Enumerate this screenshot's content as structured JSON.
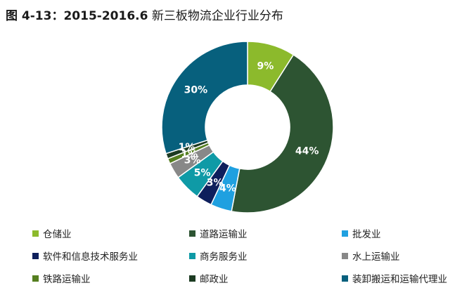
{
  "title": {
    "prefix": "图 4-13：2015-2016.6",
    "suffix": " 新三板物流企业行业分布"
  },
  "chart_data": {
    "type": "pie",
    "variant": "donut",
    "title": "图 4-13：2015-2016.6 新三板物流企业行业分布",
    "legend_position": "bottom",
    "slices": [
      {
        "label": "仓储业",
        "value": 9,
        "text": "9%",
        "color": "#8cba2c"
      },
      {
        "label": "道路运输业",
        "value": 44,
        "text": "44%",
        "color": "#2d5432"
      },
      {
        "label": "批发业",
        "value": 4,
        "text": "4%",
        "color": "#1fa0e0"
      },
      {
        "label": "软件和信息技术服务业",
        "value": 3,
        "text": "3%",
        "color": "#0e1f5c"
      },
      {
        "label": "商务服务业",
        "value": 5,
        "text": "5%",
        "color": "#0f9aa6"
      },
      {
        "label": "水上运输业",
        "value": 3,
        "text": "3%",
        "color": "#888888"
      },
      {
        "label": "铁路运输业",
        "value": 1,
        "text": "1%",
        "color": "#557f20"
      },
      {
        "label": "邮政业",
        "value": 1,
        "text": "1%",
        "color": "#1c3b22"
      },
      {
        "label": "装卸搬运和运输代理业",
        "value": 30,
        "text": "30%",
        "color": "#07607d"
      }
    ]
  }
}
